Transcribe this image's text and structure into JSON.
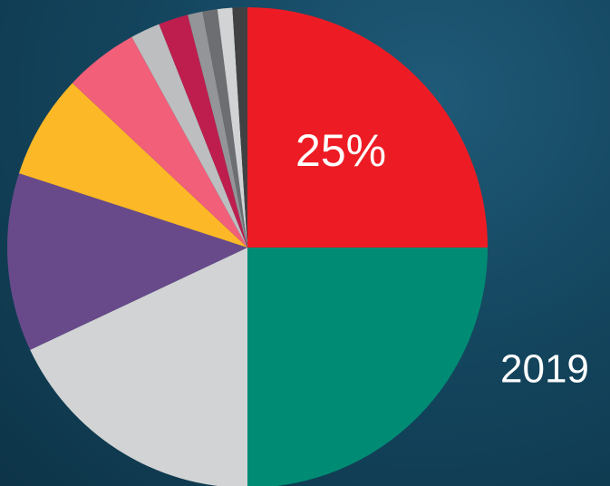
{
  "chart_data": {
    "type": "pie",
    "annotation": "2019",
    "values": [
      25,
      25,
      18,
      12,
      7,
      5,
      2,
      2,
      1,
      1,
      1,
      1
    ],
    "value_labels": [
      "25%",
      null,
      null,
      null,
      null,
      null,
      null,
      null,
      null,
      null,
      null,
      null
    ],
    "colors": [
      "#ed1c24",
      "#008c74",
      "#d1d3d4",
      "#684a8a",
      "#fdb827",
      "#f15f79",
      "#bcbec0",
      "#be1e4d",
      "#939598",
      "#6d6e71",
      "#d1d3d4",
      "#414042"
    ]
  }
}
